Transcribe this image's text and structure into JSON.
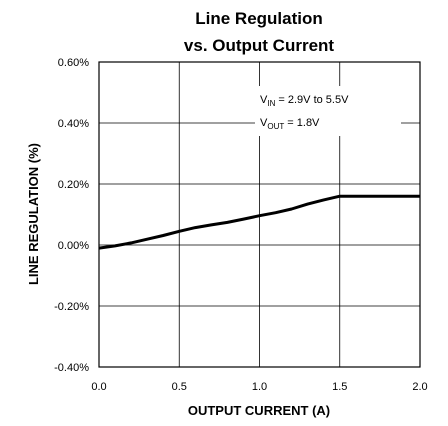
{
  "chart_data": {
    "type": "line",
    "title_line1": "Line Regulation",
    "title_line2": "vs. Output Current",
    "xlabel": "OUTPUT CURRENT (A)",
    "ylabel": "LINE REGULATION (%)",
    "xlim": [
      0,
      2.0
    ],
    "ylim": [
      -0.4,
      0.6
    ],
    "x_ticks": [
      "0.0",
      "0.5",
      "1.0",
      "1.5",
      "2.0"
    ],
    "y_ticks": [
      "0.60%",
      "0.40%",
      "0.20%",
      "0.00%",
      "-0.20%",
      "-0.40%"
    ],
    "grid": true,
    "annotations": {
      "vin": {
        "main": "V",
        "sub": "IN",
        "rest": " = 2.9V to 5.5V"
      },
      "vout": {
        "main": "V",
        "sub": "OUT",
        "rest": " = 1.8V"
      }
    },
    "series": [
      {
        "color": "#000000",
        "x": [
          0.0,
          0.1,
          0.2,
          0.3,
          0.4,
          0.5,
          0.6,
          0.7,
          0.8,
          0.9,
          1.0,
          1.1,
          1.2,
          1.3,
          1.4,
          1.5,
          1.6,
          1.7,
          1.8,
          1.9,
          2.0
        ],
        "y": [
          -0.01,
          -0.003,
          0.007,
          0.019,
          0.031,
          0.045,
          0.057,
          0.066,
          0.074,
          0.085,
          0.096,
          0.106,
          0.118,
          0.134,
          0.148,
          0.16,
          0.16,
          0.16,
          0.16,
          0.16,
          0.16
        ]
      }
    ]
  }
}
